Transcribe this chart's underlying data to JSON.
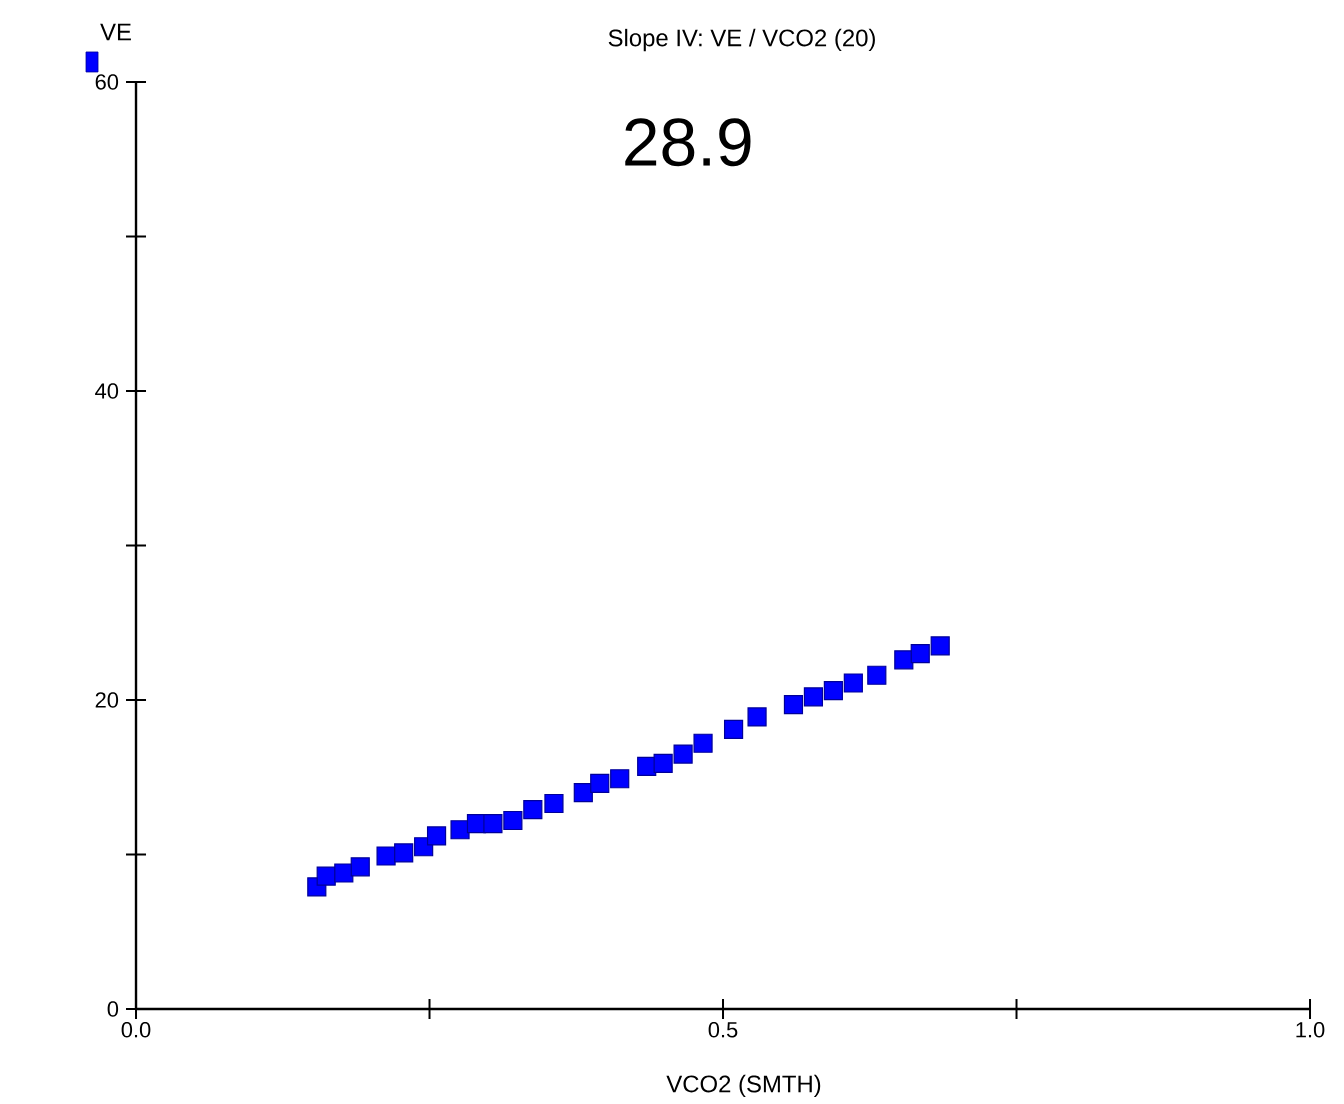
{
  "chart_data": {
    "type": "scatter",
    "title": "Slope IV: VE / VCO2 (20)",
    "xlabel": "VCO2    (SMTH)",
    "ylabel": "VE",
    "annotations": [
      "28.9"
    ],
    "x": [
      0.154,
      0.162,
      0.177,
      0.191,
      0.213,
      0.228,
      0.245,
      0.256,
      0.276,
      0.29,
      0.304,
      0.321,
      0.338,
      0.356,
      0.381,
      0.395,
      0.412,
      0.435,
      0.449,
      0.466,
      0.483,
      0.509,
      0.529,
      0.56,
      0.577,
      0.594,
      0.611,
      0.631,
      0.654,
      0.668,
      0.685
    ],
    "series": [
      {
        "color": "#0000ff",
        "values": [
          7.9,
          8.6,
          8.8,
          9.2,
          9.9,
          10.1,
          10.5,
          11.2,
          11.6,
          12.0,
          12.0,
          12.2,
          12.9,
          13.3,
          14.0,
          14.6,
          14.9,
          15.7,
          15.9,
          16.5,
          17.2,
          18.1,
          18.9,
          19.7,
          20.2,
          20.6,
          21.1,
          21.6,
          22.6,
          23.0,
          23.5
        ]
      }
    ],
    "xlim": [
      0,
      1.0
    ],
    "ylim": [
      0,
      60
    ],
    "xticks": [
      {
        "value": 0,
        "label": "0.0"
      },
      {
        "value": 0.25,
        "label": null
      },
      0.5,
      {
        "value": 0.75,
        "label": null
      },
      {
        "value": 1.0,
        "label": "1.0"
      }
    ],
    "yticks": [
      0,
      {
        "value": 10,
        "label": null
      },
      20,
      {
        "value": 30,
        "label": null
      },
      40,
      {
        "value": 50,
        "label": null
      },
      60
    ],
    "marker": "square",
    "grid": false
  }
}
